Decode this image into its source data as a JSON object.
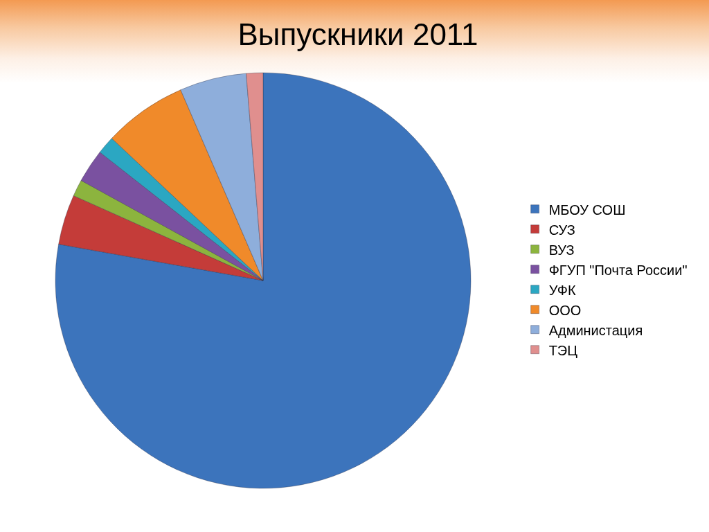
{
  "chart_data": {
    "type": "pie",
    "title": "Выпускники 2011",
    "categories": [
      "МБОУ СОШ",
      "СУЗ",
      "ВУЗ",
      "ФГУП \"Почта России\"",
      "УФК",
      "ООО",
      "Администация",
      "ТЭЦ"
    ],
    "values": [
      77.8,
      3.9,
      1.3,
      2.6,
      1.4,
      6.5,
      5.2,
      1.3
    ],
    "colors": [
      "#3c74bc",
      "#c43c39",
      "#8cb43e",
      "#7a51a0",
      "#2ba7c2",
      "#f08a2a",
      "#8eaedb",
      "#e08f8e"
    ],
    "legend": "right"
  }
}
